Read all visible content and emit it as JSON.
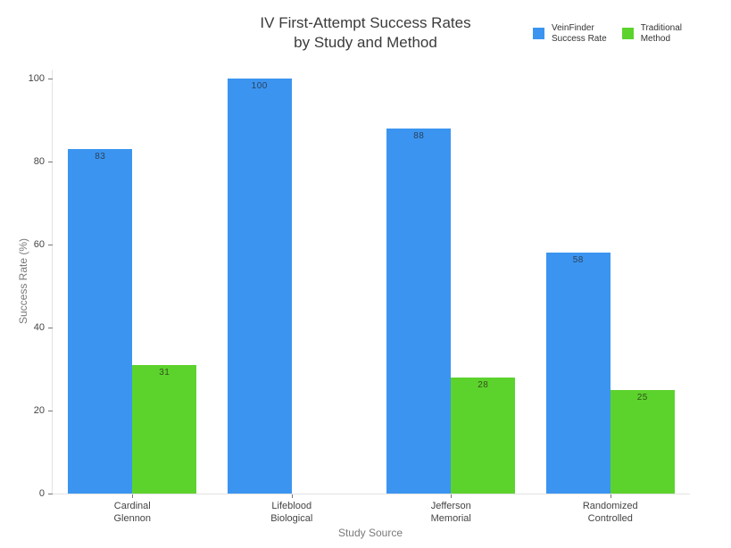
{
  "title": {
    "line1": "IV First-Attempt Success Rates",
    "line2": "by Study and Method"
  },
  "legend": [
    {
      "label_line1": "VeinFinder",
      "label_line2": "Success Rate",
      "color": "#3B95F0"
    },
    {
      "label_line1": "Traditional",
      "label_line2": "Method",
      "color": "#5CD32D"
    }
  ],
  "axes": {
    "y_label": "Success Rate (%)",
    "x_label": "Study Source",
    "y_ticks": [
      0,
      20,
      40,
      60,
      80,
      100
    ],
    "y_max": 102.15
  },
  "chart_data": {
    "type": "bar",
    "title": "IV First-Attempt Success Rates by Study and Method",
    "xlabel": "Study Source",
    "ylabel": "Success Rate (%)",
    "ylim": [
      0,
      100
    ],
    "grid": false,
    "legend_position": "top-right",
    "categories": [
      "Cardinal Glennon",
      "Lifeblood Biological",
      "Jefferson Memorial",
      "Randomized Controlled"
    ],
    "categories_lines": [
      [
        "Cardinal",
        "Glennon"
      ],
      [
        "Lifeblood",
        "Biological"
      ],
      [
        "Jefferson",
        "Memorial"
      ],
      [
        "Randomized",
        "Controlled"
      ]
    ],
    "series": [
      {
        "name": "VeinFinder Success Rate",
        "color": "#3B95F0",
        "label_color": "#2b3f5c",
        "values": [
          83,
          100,
          88,
          58
        ]
      },
      {
        "name": "Traditional Method",
        "color": "#5CD32D",
        "label_color": "#33511a",
        "values": [
          31,
          null,
          28,
          25
        ]
      }
    ]
  }
}
